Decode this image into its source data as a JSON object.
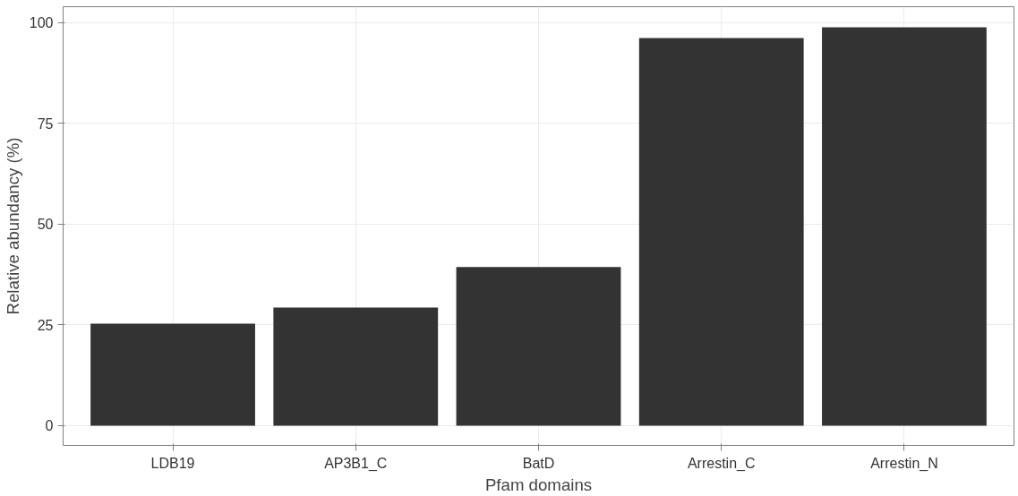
{
  "chart_data": {
    "type": "bar",
    "xlabel": "Pfam domains",
    "ylabel": "Relative abundancy (%)",
    "categories": [
      "LDB19",
      "AP3B1_C",
      "BatD",
      "Arrestin_C",
      "Arrestin_N"
    ],
    "values": [
      25.3,
      29.3,
      39.4,
      96.2,
      98.9
    ],
    "color": "#333333",
    "ylim": [
      -4.9,
      104
    ],
    "yticks": [
      0,
      25,
      50,
      75,
      100
    ],
    "grid": true
  }
}
